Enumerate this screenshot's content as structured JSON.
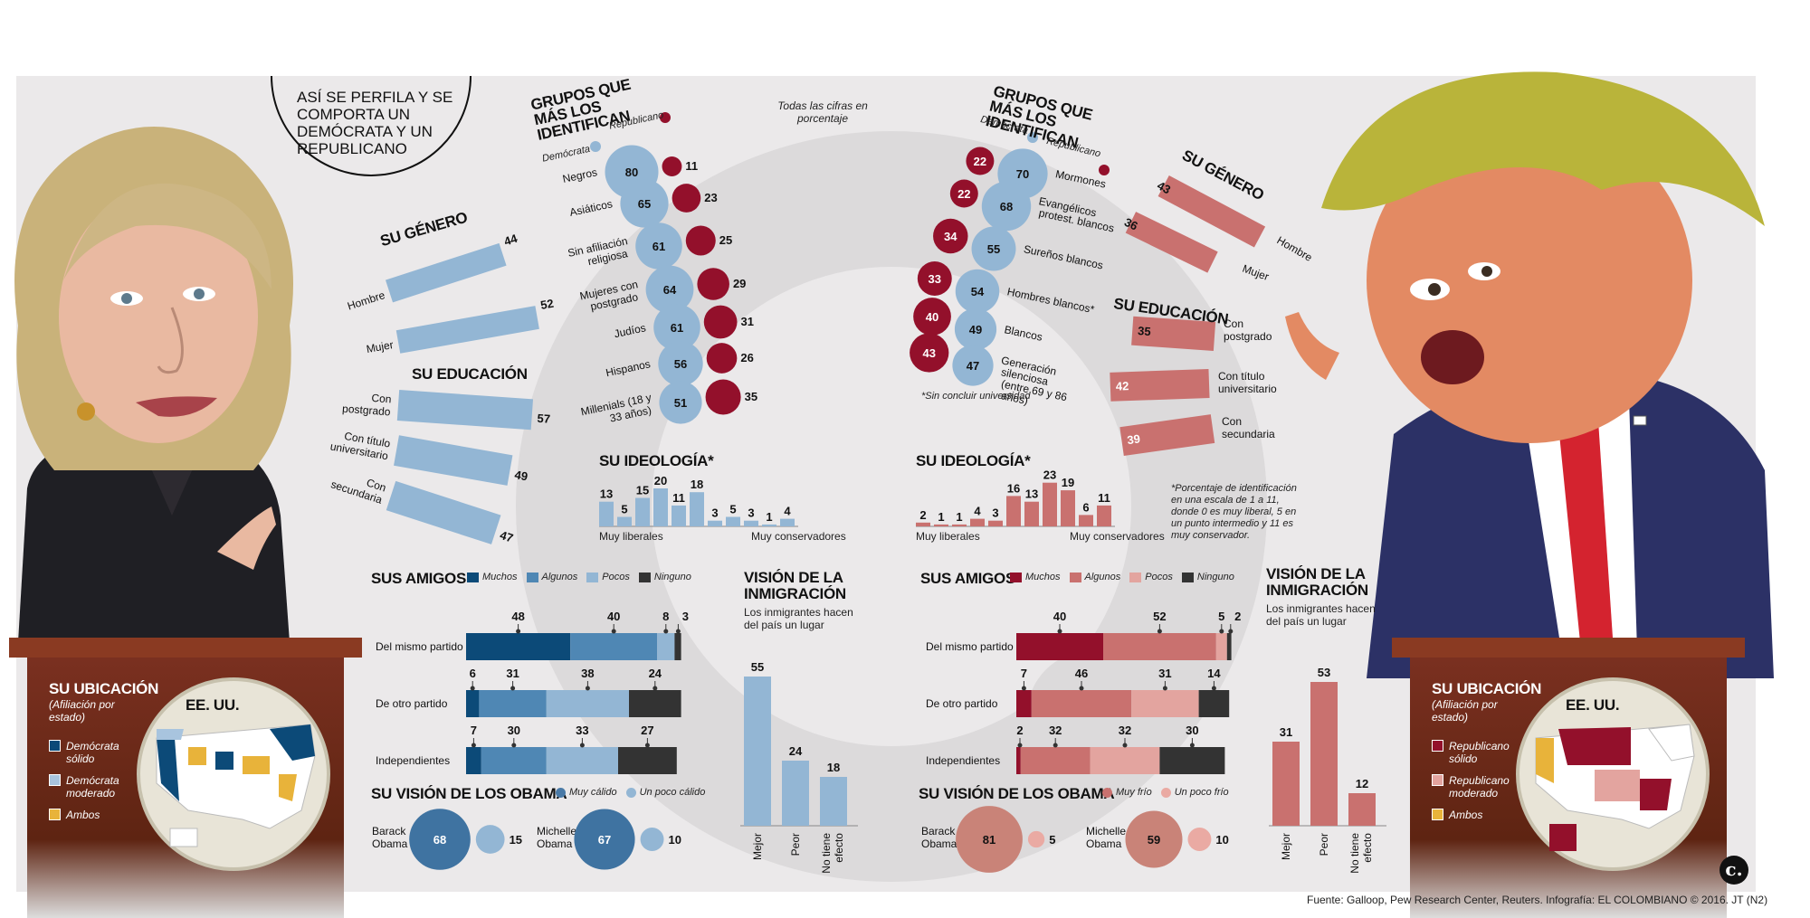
{
  "title": "ASÍ SE PERFILA Y SE COMPORTA UN DEMÓCRATA Y UN REPUBLICANO",
  "note_all": "Todas las cifras en porcentaje",
  "colors": {
    "dem_dark": "#0c4a78",
    "dem_mid": "#4f87b4",
    "dem_light": "#93b6d4",
    "rep_dark": "#93102b",
    "rep_mid": "#c9716f",
    "rep_light": "#e3a49f",
    "none": "#333333"
  },
  "footer": "Fuente: Galloop, Pew Research Center, Reuters. Infografía: EL COLOMBIANO © 2016. JT (N2)",
  "logo": "c.",
  "dem": {
    "gender_title": "SU GÉNERO",
    "education_title": "SU EDUCACIÓN",
    "groups_title": "GRUPOS QUE MÁS LOS IDENTIFICAN",
    "legend_dem": "Demócrata",
    "legend_rep": "Republicano",
    "ideology_title": "SU IDEOLOGÍA*",
    "ideology_left": "Muy liberales",
    "ideology_right": "Muy conservadores",
    "friends_title": "SUS AMIGOS",
    "friends_legend": [
      "Muchos",
      "Algunos",
      "Pocos",
      "Ninguno"
    ],
    "immig_title": "VISIÓN DE LA INMIGRACIÓN",
    "immig_sub": "Los inmigrantes hacen del país un lugar",
    "obama_title": "SU VISIÓN DE LOS OBAMA",
    "obama_legend": [
      "Muy cálido",
      "Un poco cálido"
    ],
    "location_title": "SU UBICACIÓN",
    "location_sub": "(Afiliación por estado)",
    "map_title": "EE. UU.",
    "map_legend": [
      "Demócrata sólido",
      "Demócrata moderado",
      "Ambos"
    ]
  },
  "rep": {
    "gender_title": "SU GÉNERO",
    "education_title": "SU EDUCACIÓN",
    "groups_title": "GRUPOS QUE MÁS LOS IDENTIFICAN",
    "legend_dem": "Demócrata",
    "legend_rep": "Republicano",
    "groups_note": "*Sin concluir universidad",
    "ideology_title": "SU IDEOLOGÍA*",
    "ideology_left": "Muy liberales",
    "ideology_right": "Muy conservadores",
    "ideology_note": "*Porcentaje de identificación en una escala de 1 a 11, donde 0 es muy liberal, 5 en un punto intermedio y 11 es muy conservador.",
    "friends_title": "SUS AMIGOS",
    "friends_legend": [
      "Muchos",
      "Algunos",
      "Pocos",
      "Ninguno"
    ],
    "immig_title": "VISIÓN DE LA INMIGRACIÓN",
    "immig_sub": "Los inmigrantes hacen del país un lugar",
    "obama_title": "SU VISIÓN DE LOS OBAMA",
    "obama_legend": [
      "Muy frío",
      "Un poco frío"
    ],
    "location_title": "SU UBICACIÓN",
    "location_sub": "(Afiliación por estado)",
    "map_title": "EE. UU.",
    "map_legend": [
      "Republicano sólido",
      "Republicano moderado",
      "Ambos"
    ]
  },
  "chart_data": [
    {
      "type": "bar",
      "id": "dem_gender",
      "categories": [
        "Hombre",
        "Mujer"
      ],
      "values": [
        44,
        52
      ]
    },
    {
      "type": "bar",
      "id": "dem_education",
      "categories": [
        "Con postgrado",
        "Con título universitario",
        "Con secundaria"
      ],
      "values": [
        57,
        49,
        47
      ]
    },
    {
      "type": "scatter",
      "id": "dem_groups",
      "categories": [
        "Negros",
        "Asiáticos",
        "Sin afiliación religiosa",
        "Mujeres con postgrado",
        "Judíos",
        "Hispanos",
        "Millenials (18 y 33 años)"
      ],
      "series": [
        {
          "name": "Demócrata",
          "values": [
            80,
            65,
            61,
            64,
            61,
            56,
            51
          ]
        },
        {
          "name": "Republicano",
          "values": [
            11,
            23,
            25,
            29,
            31,
            26,
            35
          ]
        }
      ]
    },
    {
      "type": "bar",
      "id": "dem_ideology",
      "categories": [
        "1",
        "2",
        "3",
        "4",
        "5",
        "6",
        "7",
        "8",
        "9",
        "10",
        "11"
      ],
      "values": [
        13,
        5,
        15,
        20,
        11,
        18,
        3,
        5,
        3,
        1,
        4
      ]
    },
    {
      "type": "bar",
      "id": "dem_friends",
      "categories": [
        "Del mismo partido",
        "De otro partido",
        "Independientes"
      ],
      "series": [
        {
          "name": "Muchos",
          "values": [
            48,
            6,
            7
          ]
        },
        {
          "name": "Algunos",
          "values": [
            40,
            31,
            30
          ]
        },
        {
          "name": "Pocos",
          "values": [
            8,
            38,
            33
          ]
        },
        {
          "name": "Ninguno",
          "values": [
            3,
            24,
            27
          ]
        }
      ]
    },
    {
      "type": "bar",
      "id": "dem_immigration",
      "categories": [
        "Mejor",
        "Peor",
        "No tiene efecto"
      ],
      "values": [
        55,
        24,
        18
      ]
    },
    {
      "type": "scatter",
      "id": "dem_obama",
      "categories": [
        "Barack Obama",
        "Michelle Obama"
      ],
      "series": [
        {
          "name": "Muy cálido",
          "values": [
            68,
            67
          ]
        },
        {
          "name": "Un poco cálido",
          "values": [
            15,
            10
          ]
        }
      ]
    },
    {
      "type": "bar",
      "id": "rep_gender",
      "categories": [
        "Hombre",
        "Mujer"
      ],
      "values": [
        43,
        36
      ]
    },
    {
      "type": "bar",
      "id": "rep_education",
      "categories": [
        "Con postgrado",
        "Con título universitario",
        "Con secundaria"
      ],
      "values": [
        35,
        42,
        39
      ]
    },
    {
      "type": "scatter",
      "id": "rep_groups",
      "categories": [
        "Mormones",
        "Evangélicos protest. blancos",
        "Sureños blancos",
        "Hombres blancos*",
        "Blancos",
        "Generación silenciosa (entre 69 y 86 años)"
      ],
      "series": [
        {
          "name": "Demócrata",
          "values": [
            22,
            22,
            34,
            33,
            40,
            43
          ]
        },
        {
          "name": "Republicano",
          "values": [
            70,
            68,
            55,
            54,
            49,
            47
          ]
        }
      ]
    },
    {
      "type": "bar",
      "id": "rep_ideology",
      "categories": [
        "1",
        "2",
        "3",
        "4",
        "5",
        "6",
        "7",
        "8",
        "9",
        "10",
        "11"
      ],
      "values": [
        2,
        1,
        1,
        4,
        3,
        16,
        13,
        23,
        19,
        6,
        11
      ]
    },
    {
      "type": "bar",
      "id": "rep_friends",
      "categories": [
        "Del mismo partido",
        "De otro partido",
        "Independientes"
      ],
      "series": [
        {
          "name": "Muchos",
          "values": [
            40,
            7,
            2
          ]
        },
        {
          "name": "Algunos",
          "values": [
            52,
            46,
            32
          ]
        },
        {
          "name": "Pocos",
          "values": [
            5,
            31,
            32
          ]
        },
        {
          "name": "Ninguno",
          "values": [
            2,
            14,
            30
          ]
        }
      ]
    },
    {
      "type": "bar",
      "id": "rep_immigration",
      "categories": [
        "Mejor",
        "Peor",
        "No tiene efecto"
      ],
      "values": [
        31,
        53,
        12
      ]
    },
    {
      "type": "scatter",
      "id": "rep_obama",
      "categories": [
        "Barack Obama",
        "Michelle Obama"
      ],
      "series": [
        {
          "name": "Muy frío",
          "values": [
            81,
            59
          ]
        },
        {
          "name": "Un poco frío",
          "values": [
            5,
            10
          ]
        }
      ]
    }
  ]
}
